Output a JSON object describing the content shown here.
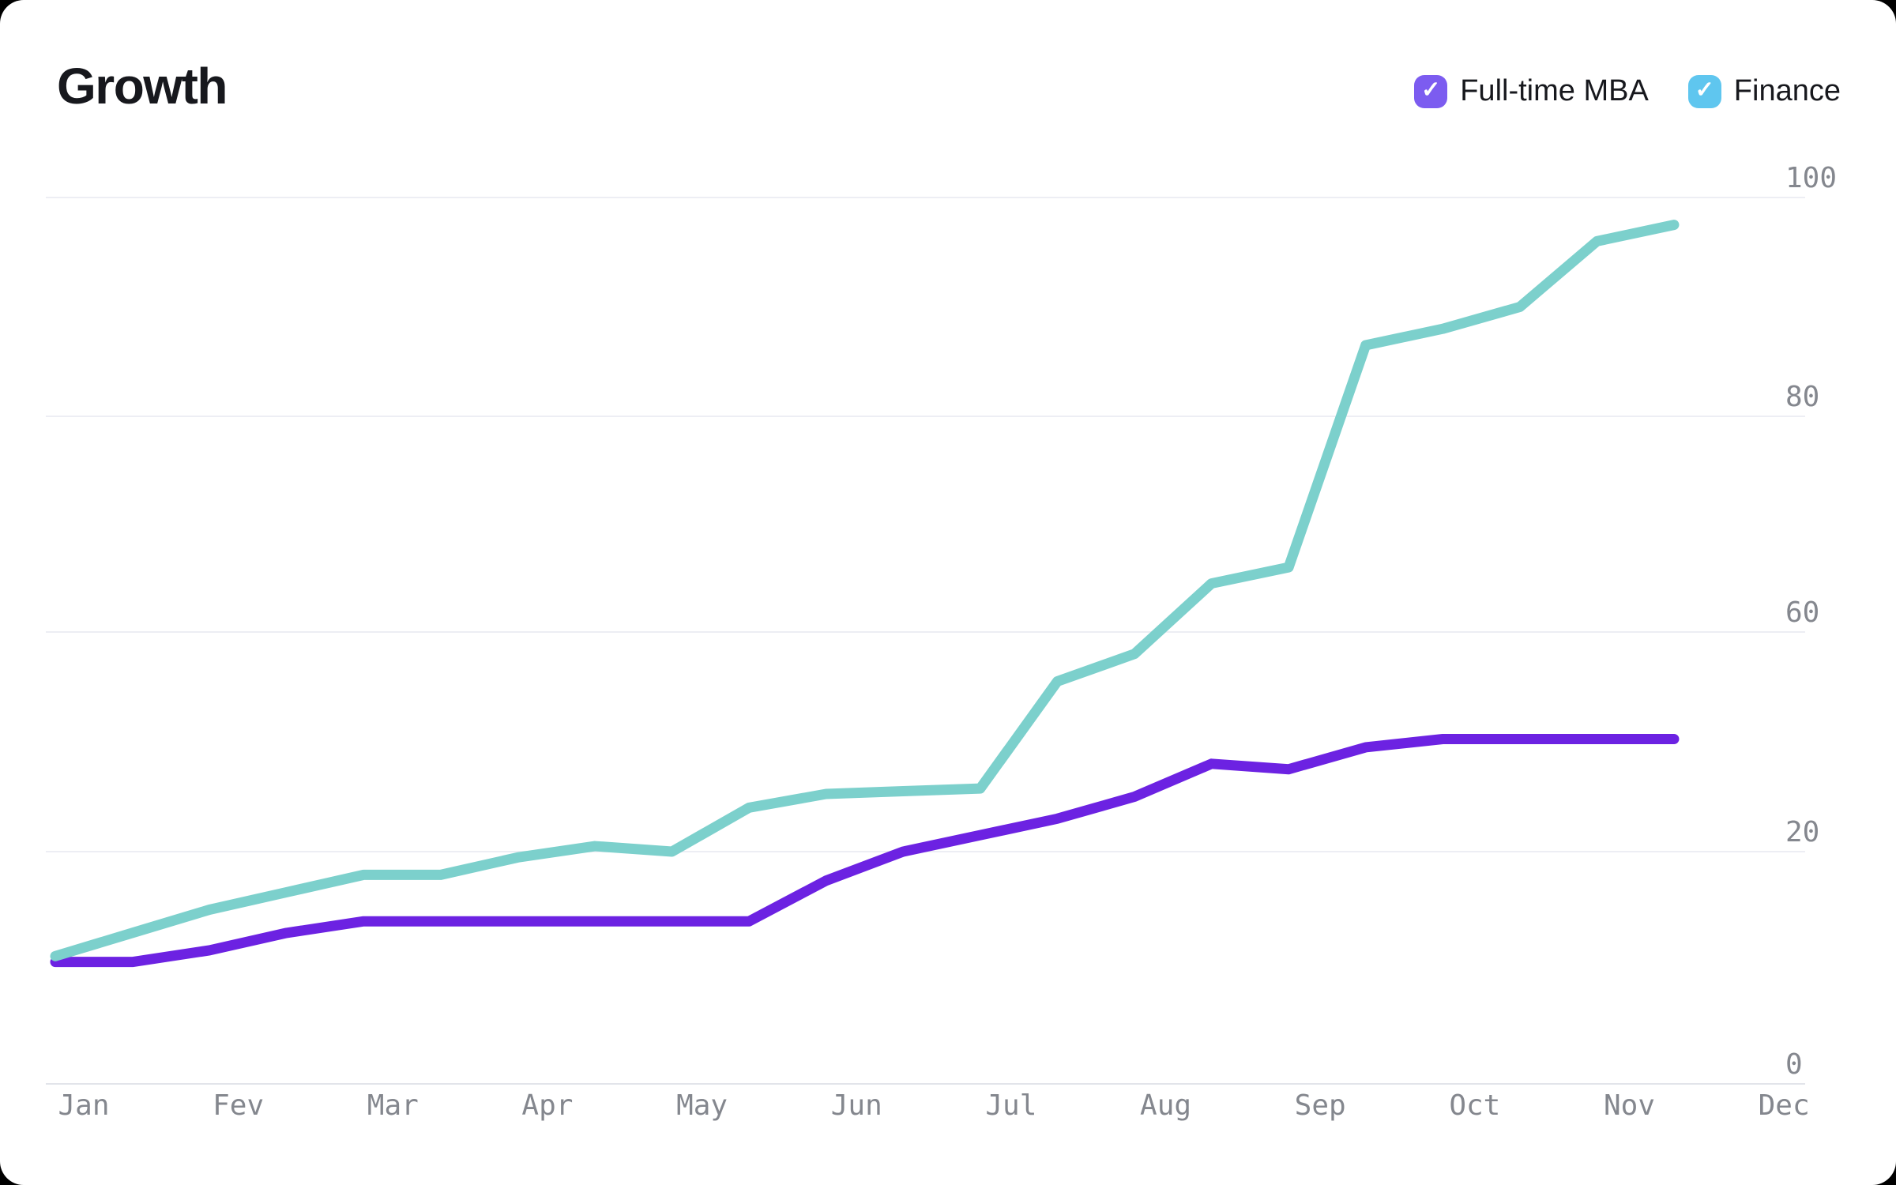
{
  "card": {
    "title": "Growth",
    "background": "#ffffff",
    "page_background": "#000000"
  },
  "legend": [
    {
      "label": "Full-time MBA",
      "checkbox_color": "#7C5CF0",
      "checked": true,
      "checkmark": "✓"
    },
    {
      "label": "Finance",
      "checkbox_color": "#5FC6EF",
      "checked": true,
      "checkmark": "✓"
    }
  ],
  "chart_data": {
    "type": "line",
    "title": "Growth",
    "x_unit": "month (points every half month, Jan through mid-Nov)",
    "x_months": [
      1,
      1.5,
      2,
      2.5,
      3,
      3.5,
      4,
      4.5,
      5,
      5.5,
      6,
      6.5,
      7,
      7.5,
      8,
      8.5,
      9,
      9.5,
      10,
      10.5,
      11,
      11.5
    ],
    "series": [
      {
        "name": "Full-time MBA",
        "line_color": "#6C22E2",
        "values": [
          10.5,
          10.5,
          11.5,
          13,
          14,
          14,
          14,
          14,
          14,
          14,
          17.5,
          20,
          23,
          26,
          30,
          36,
          35,
          39,
          40.5,
          40.5,
          40.5,
          40.5
        ]
      },
      {
        "name": "Finance",
        "line_color": "#7CD0CC",
        "values": [
          11,
          13,
          15,
          16.5,
          18,
          18,
          19.5,
          21,
          20,
          28,
          30.5,
          31,
          31.5,
          51,
          56,
          64.5,
          66,
          86.5,
          88,
          90,
          96,
          97.5
        ]
      }
    ],
    "x_axis": {
      "labels": [
        "Jan",
        "Fev",
        "Mar",
        "Apr",
        "May",
        "Jun",
        "Jul",
        "Aug",
        "Sep",
        "Oct",
        "Nov",
        "Dec"
      ]
    },
    "y_axis": {
      "labels": [
        100,
        80,
        60,
        20,
        0
      ],
      "range": [
        0,
        100
      ]
    },
    "grid": true,
    "legend_position": "top-right",
    "colors": {
      "gridline": "#EDEEF4",
      "baseline": "#E2E4EA",
      "tick_label": "#84878E"
    }
  }
}
